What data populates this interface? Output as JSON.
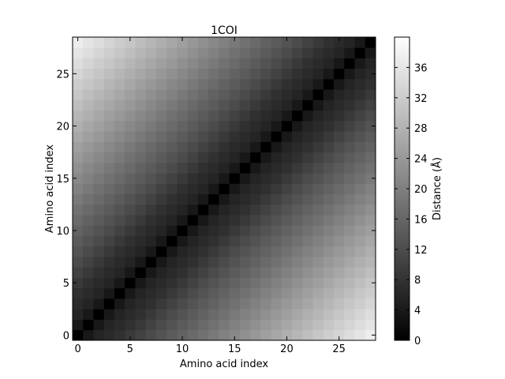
{
  "chart_data": {
    "type": "heatmap",
    "title": "1COI",
    "xlabel": "Amino acid index",
    "ylabel": "Amino acid index",
    "n_residues": 29,
    "xlim": [
      -0.5,
      28.5
    ],
    "ylim": [
      -0.5,
      28.5
    ],
    "x_ticks": [
      0,
      5,
      10,
      15,
      20,
      25
    ],
    "y_ticks": [
      0,
      5,
      10,
      15,
      20,
      25
    ],
    "x_tick_labels": [
      "0",
      "5",
      "10",
      "15",
      "20",
      "25"
    ],
    "y_tick_labels": [
      "0",
      "5",
      "10",
      "15",
      "20",
      "25"
    ],
    "colormap": "gray",
    "grid": false,
    "colorbar": {
      "label": "Distance (Å)",
      "vmin": 0,
      "vmax": 40,
      "ticks": [
        0,
        4,
        8,
        12,
        16,
        20,
        24,
        28,
        32,
        36
      ],
      "tick_labels": [
        "0",
        "4",
        "8",
        "12",
        "16",
        "20",
        "24",
        "28",
        "32",
        "36"
      ],
      "position": "right"
    },
    "values_description": "Symmetric pairwise C-alpha distance matrix; distance grows with index separation (approx. 1.5 Å per residue), reaching ~38-40 Å for the most separated pairs (0,28).",
    "distance_per_residue_separation": [
      0,
      3.8,
      5.6,
      6.6,
      7.6,
      9.0,
      10.4,
      11.7,
      13.0,
      14.2,
      15.4,
      16.6,
      17.8,
      19.0,
      20.2,
      21.4,
      22.6,
      23.8,
      25.0,
      26.2,
      27.4,
      28.6,
      29.8,
      31.0,
      32.2,
      33.4,
      34.6,
      35.8,
      37.2
    ]
  }
}
